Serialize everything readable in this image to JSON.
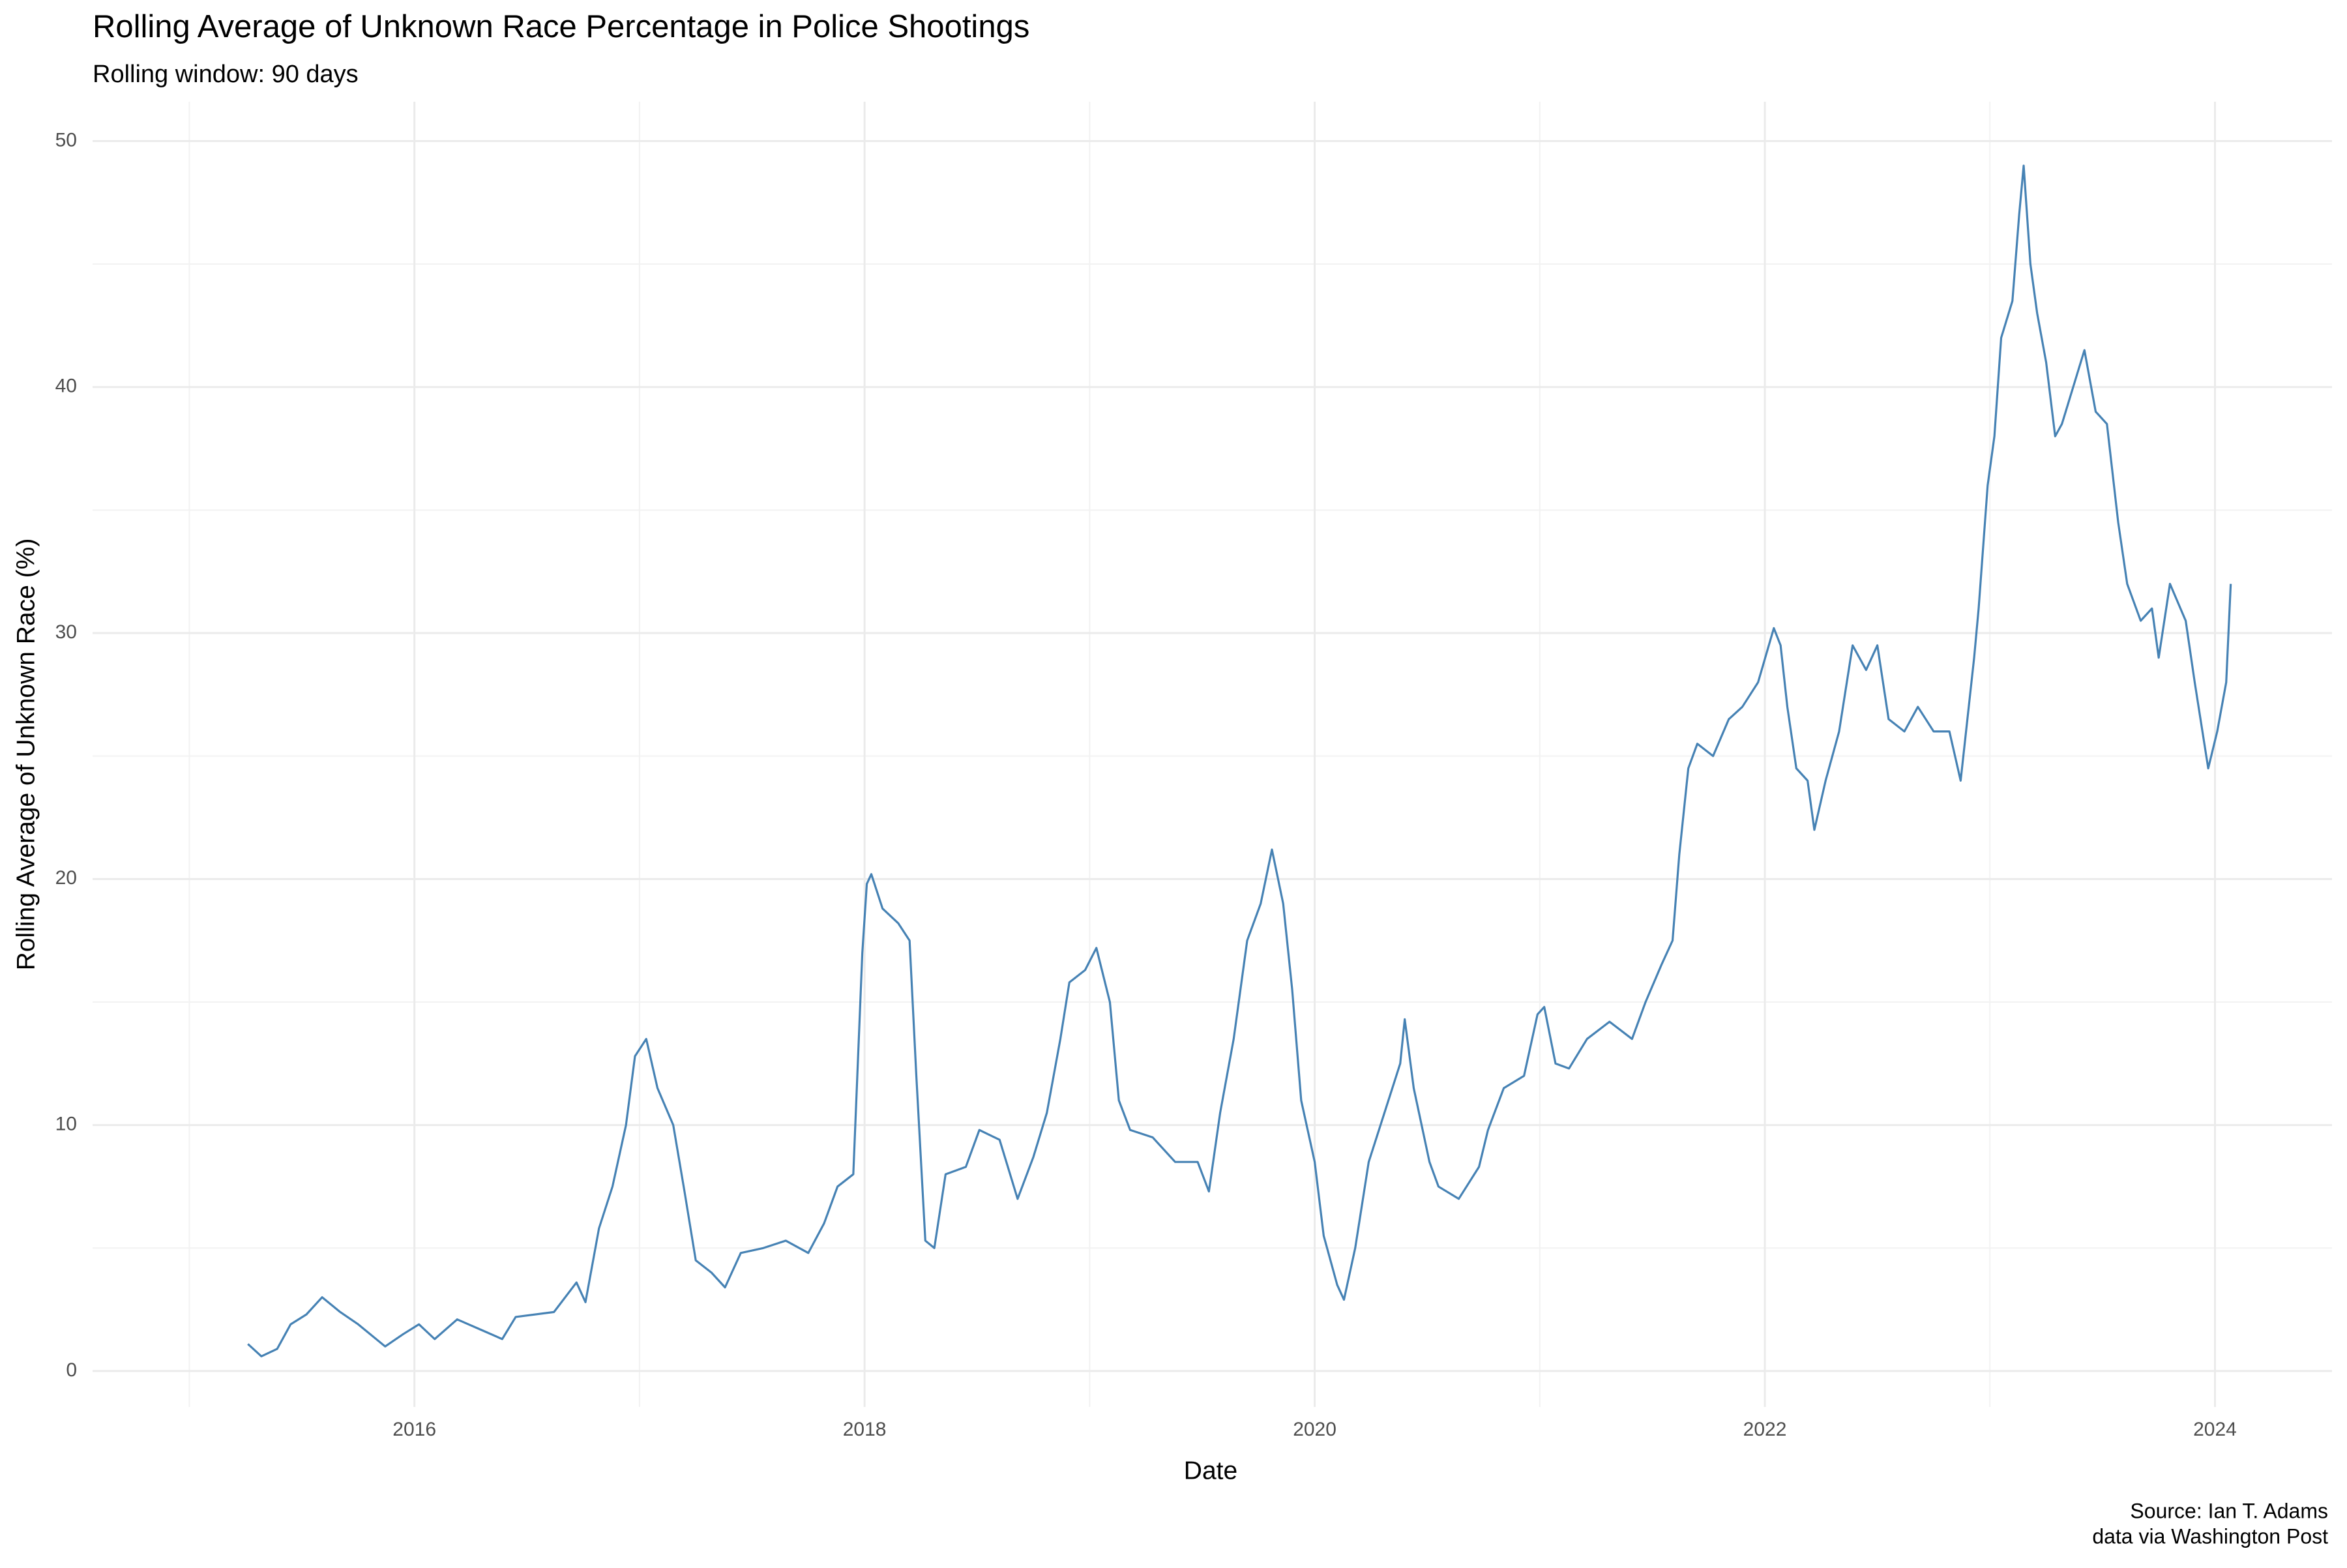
{
  "chart_data": {
    "type": "line",
    "title": "Rolling Average of Unknown Race Percentage in Police Shootings",
    "subtitle": "Rolling window: 90 days",
    "x_label": "Date",
    "y_label": "Rolling Average of Unknown Race (%)",
    "caption": [
      "Source: Ian T. Adams",
      "data via Washington Post"
    ],
    "color": "#4682b4",
    "grid": true,
    "x": [
      2015.26,
      2015.32,
      2015.39,
      2015.45,
      2015.52,
      2015.59,
      2015.67,
      2015.75,
      2015.87,
      2015.95,
      2016.02,
      2016.09,
      2016.19,
      2016.29,
      2016.39,
      2016.45,
      2016.62,
      2016.72,
      2016.76,
      2016.82,
      2016.88,
      2016.94,
      2016.98,
      2017.03,
      2017.08,
      2017.15,
      2017.2,
      2017.25,
      2017.32,
      2017.38,
      2017.45,
      2017.55,
      2017.65,
      2017.75,
      2017.82,
      2017.88,
      2017.95,
      2017.99,
      2018.01,
      2018.03,
      2018.08,
      2018.15,
      2018.2,
      2018.23,
      2018.27,
      2018.31,
      2018.36,
      2018.45,
      2018.51,
      2018.6,
      2018.68,
      2018.75,
      2018.81,
      2018.87,
      2018.91,
      2018.98,
      2019.03,
      2019.09,
      2019.13,
      2019.18,
      2019.28,
      2019.38,
      2019.48,
      2019.53,
      2019.58,
      2019.64,
      2019.7,
      2019.76,
      2019.81,
      2019.86,
      2019.9,
      2019.94,
      2020.0,
      2020.04,
      2020.1,
      2020.13,
      2020.18,
      2020.24,
      2020.31,
      2020.38,
      2020.4,
      2020.44,
      2020.51,
      2020.55,
      2020.64,
      2020.73,
      2020.77,
      2020.84,
      2020.93,
      2020.99,
      2021.02,
      2021.07,
      2021.13,
      2021.21,
      2021.31,
      2021.41,
      2021.47,
      2021.54,
      2021.59,
      2021.62,
      2021.66,
      2021.7,
      2021.77,
      2021.84,
      2021.9,
      2021.97,
      2022.04,
      2022.07,
      2022.1,
      2022.14,
      2022.19,
      2022.22,
      2022.27,
      2022.33,
      2022.39,
      2022.45,
      2022.5,
      2022.55,
      2022.62,
      2022.68,
      2022.75,
      2022.82,
      2022.87,
      2022.93,
      2022.95,
      2022.99,
      2023.02,
      2023.05,
      2023.1,
      2023.13,
      2023.15,
      2023.18,
      2023.21,
      2023.25,
      2023.29,
      2023.32,
      2023.37,
      2023.42,
      2023.47,
      2023.52,
      2023.57,
      2023.61,
      2023.67,
      2023.72,
      2023.75,
      2023.8,
      2023.87,
      2023.91,
      2023.97,
      2024.01,
      2024.05,
      2024.07
    ],
    "values": [
      1.1,
      0.6,
      0.9,
      1.9,
      2.3,
      3.0,
      2.4,
      1.9,
      1.0,
      1.5,
      1.9,
      1.3,
      2.1,
      1.7,
      1.3,
      2.2,
      2.4,
      3.6,
      2.8,
      5.8,
      7.5,
      10,
      12.8,
      13.5,
      11.5,
      10,
      7.3,
      4.5,
      4.0,
      3.4,
      4.8,
      5.0,
      5.3,
      4.8,
      6.0,
      7.5,
      8.0,
      17,
      19.8,
      20.2,
      18.8,
      18.2,
      17.5,
      12,
      5.3,
      5.0,
      8.0,
      8.3,
      9.8,
      9.4,
      7.0,
      8.7,
      10.5,
      13.5,
      15.8,
      16.3,
      17.2,
      15,
      11,
      9.8,
      9.5,
      8.5,
      8.5,
      7.3,
      10.5,
      13.5,
      17.5,
      19.0,
      21.2,
      19.0,
      15.5,
      11,
      8.5,
      5.5,
      3.5,
      2.9,
      5.0,
      8.5,
      10.5,
      12.5,
      14.3,
      11.5,
      8.5,
      7.5,
      7.0,
      8.3,
      9.8,
      11.5,
      12.0,
      14.5,
      14.8,
      12.5,
      12.3,
      13.5,
      14.2,
      13.5,
      15,
      16.5,
      17.5,
      21,
      24.5,
      25.5,
      25,
      26.5,
      27,
      28,
      30.2,
      29.5,
      27,
      24.5,
      24,
      22,
      24,
      26,
      29.5,
      28.5,
      29.5,
      26.5,
      26,
      27,
      26,
      26,
      24,
      29,
      31,
      36,
      38,
      42,
      43.5,
      47,
      49,
      45,
      43,
      41,
      38,
      38.5,
      40,
      41.5,
      39,
      38.5,
      34.5,
      32,
      30.5,
      31,
      29,
      32,
      30.5,
      28,
      24.5,
      26,
      28,
      32
    ],
    "xlim": [
      2014.57,
      2024.52
    ],
    "ylim": [
      -1.46,
      51.6
    ],
    "xticks": [
      2016,
      2018,
      2020,
      2022,
      2024
    ],
    "yticks": [
      0,
      10,
      20,
      30,
      40,
      50
    ]
  }
}
